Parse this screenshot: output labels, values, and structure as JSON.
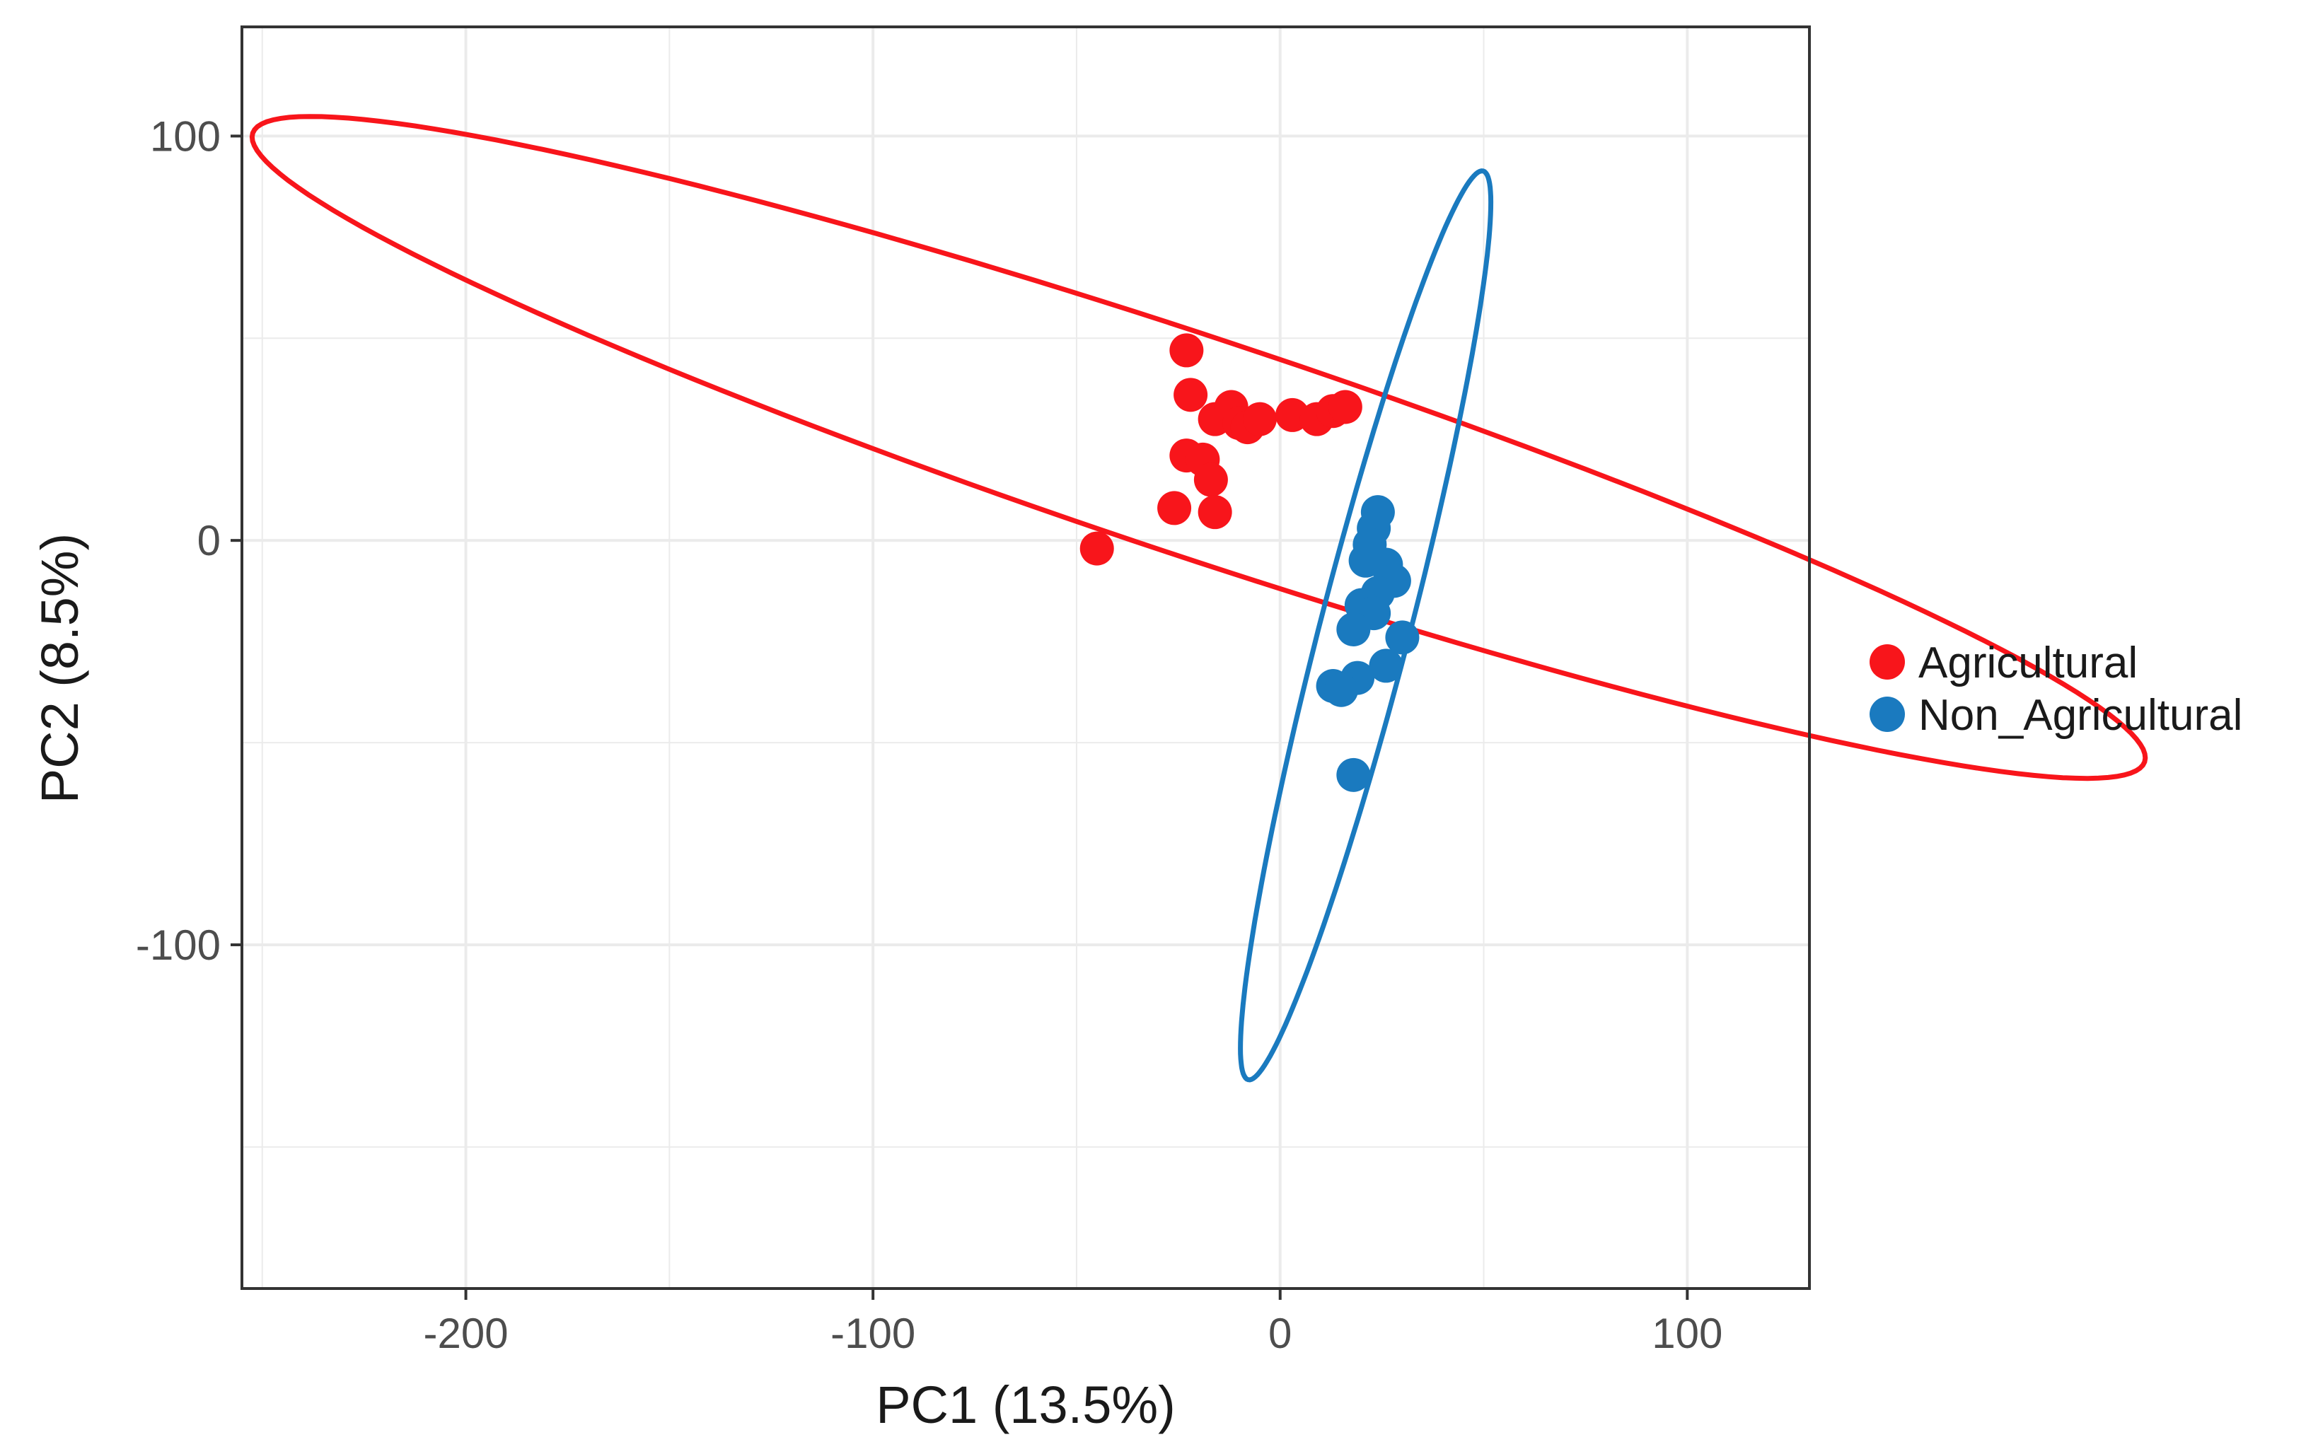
{
  "chart_data": {
    "type": "scatter",
    "xlabel": "PC1 (13.5%)",
    "ylabel": "PC2 (8.5%)",
    "xlim": [
      -255,
      130
    ],
    "ylim": [
      -185,
      127
    ],
    "x_ticks": [
      -200,
      -100,
      0,
      100
    ],
    "y_ticks": [
      100,
      0,
      -100
    ],
    "x_tick_labels": [
      "-200",
      "-100",
      "0",
      "100"
    ],
    "y_tick_labels": [
      "100",
      "0",
      "-100"
    ],
    "grid": true,
    "legend_position": "right",
    "series": [
      {
        "name": "Agricultural",
        "color": "#f8151b",
        "points": [
          [
            -23,
            47
          ],
          [
            -22,
            36
          ],
          [
            -16,
            30
          ],
          [
            -12,
            33
          ],
          [
            -10,
            29
          ],
          [
            -8,
            28
          ],
          [
            -5,
            30
          ],
          [
            3,
            31
          ],
          [
            9,
            30
          ],
          [
            13,
            32
          ],
          [
            16,
            33
          ],
          [
            -23,
            21
          ],
          [
            -19,
            20
          ],
          [
            -17,
            15
          ],
          [
            -26,
            8
          ],
          [
            -16,
            7
          ],
          [
            -45,
            -2
          ]
        ],
        "ellipse": {
          "cx": -20,
          "cy": 23,
          "rx": 245,
          "ry": 27,
          "angle_deg": -18.5
        }
      },
      {
        "name": "Non_Agricultural",
        "color": "#1a7abf",
        "points": [
          [
            24,
            7
          ],
          [
            23,
            3
          ],
          [
            22,
            -1
          ],
          [
            21,
            -5
          ],
          [
            26,
            -6
          ],
          [
            28,
            -10
          ],
          [
            24,
            -13
          ],
          [
            20,
            -16
          ],
          [
            23,
            -18
          ],
          [
            18,
            -22
          ],
          [
            30,
            -24
          ],
          [
            26,
            -31
          ],
          [
            19,
            -34
          ],
          [
            13,
            -36
          ],
          [
            15,
            -37
          ],
          [
            18,
            -58
          ]
        ],
        "ellipse": {
          "cx": 21,
          "cy": -21,
          "rx": 116,
          "ry": 11,
          "angle_deg": -104.4
        }
      }
    ]
  }
}
